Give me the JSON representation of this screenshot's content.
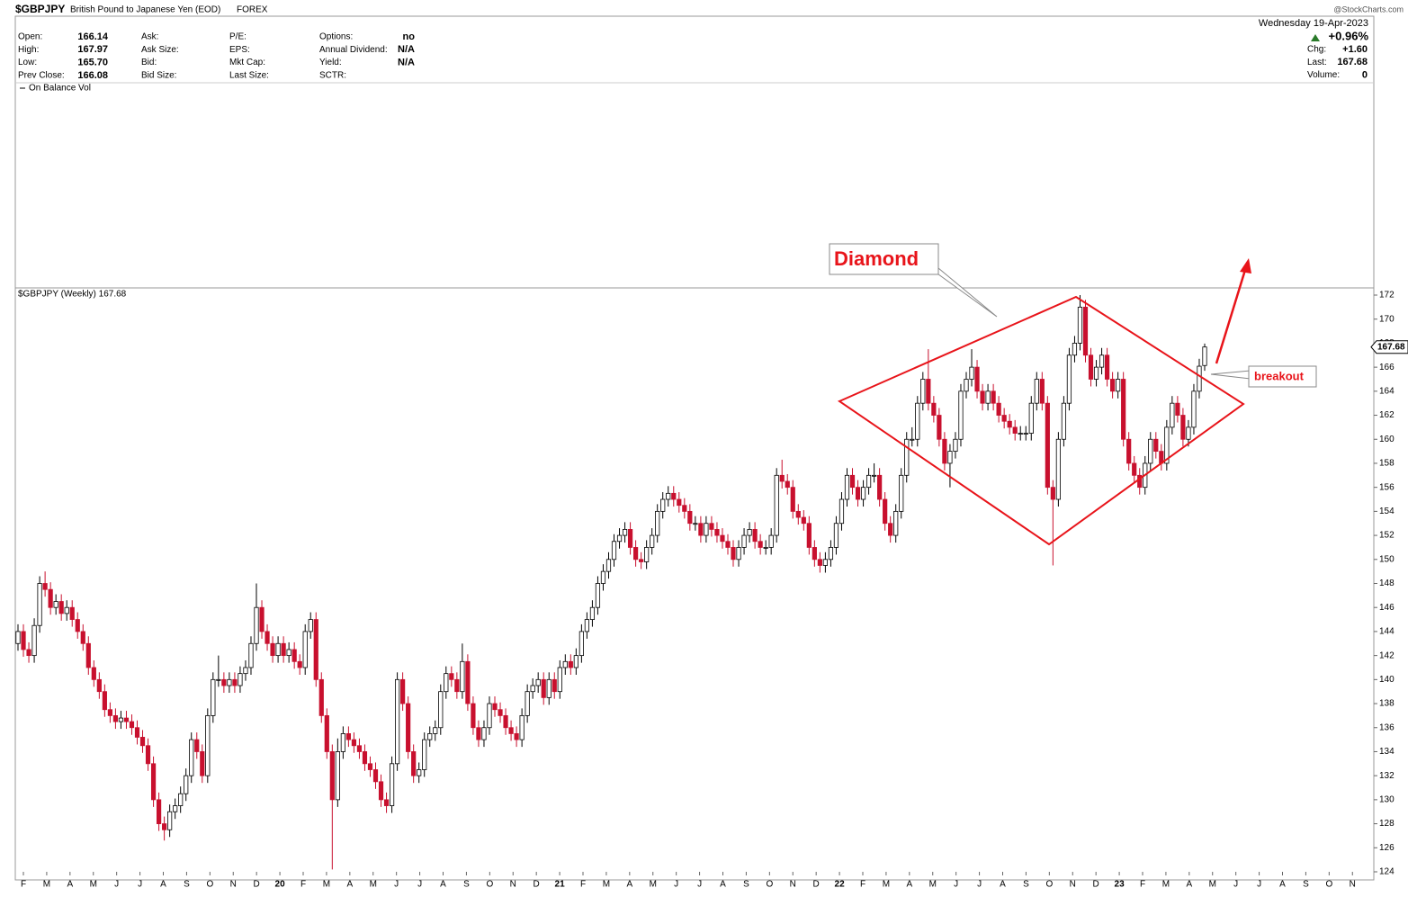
{
  "header": {
    "symbol": "$GBPJPY",
    "description": "British Pound to Japanese Yen (EOD)",
    "exchange": "FOREX",
    "credit": "@StockCharts.com",
    "date": "Wednesday  19-Apr-2023",
    "change_pct": "+0.96%",
    "columns": [
      [
        {
          "label": "Open:",
          "value": "166.14"
        },
        {
          "label": "High:",
          "value": "167.97"
        },
        {
          "label": "Low:",
          "value": "165.70"
        },
        {
          "label": "Prev Close:",
          "value": "166.08"
        }
      ],
      [
        {
          "label": "Ask:"
        },
        {
          "label": "Ask Size:"
        },
        {
          "label": "Bid:"
        },
        {
          "label": "Bid Size:"
        }
      ],
      [
        {
          "label": "P/E:"
        },
        {
          "label": "EPS:"
        },
        {
          "label": "Mkt Cap:"
        },
        {
          "label": "Last Size:"
        }
      ],
      [
        {
          "label": "Options:",
          "value": "no"
        },
        {
          "label": "Annual Dividend:",
          "value": "N/A"
        },
        {
          "label": "Yield:",
          "value": "N/A"
        },
        {
          "label": "SCTR:"
        }
      ]
    ],
    "right": [
      {
        "label": "Chg:",
        "value": "+1.60"
      },
      {
        "label": "Last:",
        "value": "167.68"
      },
      {
        "label": "Volume:",
        "value": "0"
      }
    ],
    "indicator": "On Balance Vol",
    "legend": "$GBPJPY (Weekly) 167.68"
  },
  "chart_data": {
    "type": "candlestick",
    "up_color": "#ffffff",
    "down_color": "#c8102e",
    "annotations": [
      "Diamond",
      "breakout"
    ],
    "ylim": [
      124,
      172
    ],
    "yticks": [
      124,
      126,
      128,
      130,
      132,
      134,
      136,
      138,
      140,
      142,
      144,
      146,
      148,
      150,
      152,
      154,
      156,
      158,
      160,
      162,
      164,
      166,
      168,
      170,
      172
    ],
    "x_labels": [
      "F",
      "M",
      "A",
      "M",
      "J",
      "J",
      "A",
      "S",
      "O",
      "N",
      "D",
      "20",
      "F",
      "M",
      "A",
      "M",
      "J",
      "J",
      "A",
      "S",
      "O",
      "N",
      "D",
      "21",
      "F",
      "M",
      "A",
      "M",
      "J",
      "J",
      "A",
      "S",
      "O",
      "N",
      "D",
      "22",
      "F",
      "M",
      "A",
      "M",
      "J",
      "J",
      "A",
      "S",
      "O",
      "N",
      "D",
      "23",
      "F",
      "M",
      "A",
      "M",
      "J",
      "J",
      "A",
      "S",
      "O",
      "N"
    ],
    "open": [
      143,
      144,
      142.5,
      142,
      144.5,
      148,
      147.5,
      146,
      146.5,
      145.5,
      146,
      145,
      144,
      143,
      141,
      140,
      139,
      137.5,
      137,
      136.5,
      136.8,
      136.5,
      136,
      135.2,
      134.5,
      133,
      130,
      128,
      127.5,
      129,
      129.5,
      130.5,
      132,
      135,
      134,
      132,
      137,
      140,
      140,
      139.5,
      140,
      139.5,
      140.5,
      141,
      143,
      146,
      144,
      143,
      142,
      143,
      142,
      142.5,
      141.5,
      141,
      144,
      145,
      140,
      137,
      134,
      130,
      134,
      135.5,
      135,
      134.5,
      134,
      133,
      132.5,
      131.5,
      130,
      129.5,
      133,
      140,
      138,
      134,
      132,
      132.5,
      135,
      135.5,
      136,
      139,
      140.5,
      140,
      139,
      141.5,
      138,
      136,
      135,
      136,
      138,
      137.5,
      137,
      136,
      135.5,
      135,
      137,
      139,
      139.5,
      140,
      138.5,
      140,
      139,
      141,
      141.5,
      141,
      142,
      144,
      145,
      146,
      148,
      149,
      150,
      151.5,
      152,
      152.5,
      151,
      150,
      149.8,
      151,
      152,
      154,
      155,
      155.5,
      155,
      154.5,
      154,
      153,
      153,
      152,
      153,
      152.5,
      152,
      151.5,
      151,
      150,
      151,
      152,
      152.5,
      151.5,
      151,
      151,
      152,
      157,
      156.5,
      156,
      154,
      153.5,
      153,
      151,
      150,
      149.5,
      150,
      151,
      153,
      155,
      157,
      156,
      155,
      156,
      157,
      157,
      155,
      153,
      152,
      154,
      157,
      160,
      160,
      163,
      165,
      163,
      162,
      160,
      158,
      159,
      160,
      164,
      165,
      166,
      164,
      163,
      164,
      163,
      162,
      161.5,
      161,
      160.5,
      160.5,
      160.5,
      163,
      165,
      163,
      156,
      155,
      160,
      163,
      167,
      168,
      171,
      167,
      165,
      166,
      167,
      165,
      164,
      165,
      160,
      158,
      157,
      156,
      158,
      160,
      159,
      158,
      161,
      163,
      162,
      160,
      161,
      164,
      166.14
    ],
    "high": [
      144.6,
      144.6,
      143.1,
      145.1,
      148.6,
      149,
      148.1,
      147.1,
      147.1,
      146.6,
      146.6,
      145.6,
      144.6,
      143.6,
      141.6,
      140.6,
      139.6,
      138.1,
      137.6,
      137.4,
      137.4,
      137.1,
      136.6,
      135.8,
      135.1,
      133.6,
      130.6,
      128.6,
      129.6,
      130.1,
      131.1,
      132.6,
      135.6,
      135.6,
      134.6,
      137.6,
      140.6,
      142,
      140.6,
      140.6,
      140.6,
      141.1,
      141.6,
      143.6,
      148,
      146.6,
      144.6,
      143.6,
      143.6,
      143.6,
      143.1,
      143.1,
      142.1,
      144.6,
      145.6,
      145.6,
      140.6,
      137.6,
      134.6,
      135.1,
      136.1,
      136.1,
      135.6,
      135.1,
      134.6,
      133.6,
      133.1,
      132.1,
      130.6,
      133.6,
      140.6,
      140.6,
      138.6,
      134.6,
      133.1,
      135.6,
      136.1,
      136.6,
      139.6,
      141.1,
      141.1,
      140.6,
      143,
      142.1,
      138.6,
      136.6,
      136.6,
      138.6,
      138.6,
      138.1,
      137.6,
      136.6,
      136.1,
      137.6,
      139.6,
      140.1,
      140.6,
      140.6,
      140.6,
      140.6,
      141.6,
      142.1,
      142.1,
      142.6,
      144.6,
      145.6,
      146.6,
      148.6,
      149.6,
      150.6,
      152.1,
      152.6,
      153.1,
      153.1,
      151.6,
      150.6,
      151.6,
      152.6,
      154.6,
      155.6,
      156.1,
      156.1,
      155.6,
      155.1,
      154.6,
      153.6,
      153.6,
      153.6,
      153.6,
      153.1,
      152.6,
      152.1,
      151.6,
      151.6,
      152.6,
      153.1,
      153.1,
      152.1,
      151.6,
      152.6,
      157.6,
      158.3,
      157.1,
      156.6,
      154.6,
      154.1,
      153.6,
      151.6,
      150.6,
      150.6,
      151.6,
      153.6,
      155.6,
      157.6,
      157.6,
      156.6,
      156.6,
      157.6,
      158,
      157.6,
      155.6,
      153.6,
      154.6,
      157.6,
      160.6,
      161,
      163.6,
      165.6,
      167.5,
      163.6,
      162.6,
      160.6,
      159.6,
      160.6,
      164.6,
      165.6,
      167.5,
      166.6,
      164.6,
      164.6,
      164.6,
      163.6,
      162.6,
      162.1,
      161.6,
      161.1,
      161.1,
      163.6,
      165.6,
      165.6,
      163.6,
      156.6,
      160.6,
      163.6,
      167.6,
      168.6,
      172,
      171.6,
      167.6,
      166.6,
      167.6,
      167.6,
      165.6,
      165.6,
      165.6,
      160.6,
      158.6,
      157.6,
      158.6,
      160.6,
      160.6,
      159.6,
      161.6,
      163.6,
      163.6,
      162.6,
      161.6,
      164.6,
      166.7,
      167.97
    ],
    "low": [
      142.4,
      141.9,
      141.4,
      141.4,
      143.9,
      146.9,
      145.4,
      145.4,
      144.9,
      144.9,
      144.4,
      143.4,
      142.4,
      140.4,
      139.4,
      138.4,
      136.9,
      136.4,
      135.9,
      135.9,
      135.9,
      135.4,
      134.6,
      133.9,
      132.4,
      129.4,
      127.4,
      126.6,
      126.9,
      128.4,
      128.9,
      129.9,
      131.4,
      133.4,
      131.4,
      131.4,
      136.4,
      139.4,
      138.9,
      138.9,
      138.9,
      138.9,
      139.9,
      140.4,
      142.4,
      143.4,
      142.4,
      141.4,
      141.4,
      141.4,
      141.4,
      140.9,
      140.4,
      140.4,
      143.4,
      139.4,
      136.4,
      133.4,
      124.2,
      129.4,
      133.4,
      134.4,
      133.9,
      133.4,
      132.4,
      131.9,
      130.9,
      129.4,
      128.9,
      128.9,
      132.4,
      137.4,
      133.4,
      131.4,
      131.4,
      131.9,
      134.4,
      134.9,
      135.4,
      138.4,
      139.4,
      138.4,
      138.4,
      137.4,
      135.4,
      134.4,
      134.4,
      135.4,
      136.9,
      136.4,
      135.4,
      134.9,
      134.4,
      134.4,
      136.4,
      138.4,
      138.9,
      137.9,
      137.9,
      138.4,
      138.4,
      140.4,
      140.4,
      140.4,
      141.4,
      143.4,
      144.4,
      145.4,
      147.4,
      148.4,
      149.4,
      150.9,
      151.4,
      150.4,
      149.4,
      149.2,
      149.2,
      150.4,
      151.4,
      153.4,
      154.4,
      154.4,
      153.9,
      153.4,
      152.4,
      152.4,
      151.4,
      151.4,
      151.9,
      151.4,
      150.9,
      150.4,
      149.4,
      149.4,
      150.4,
      151.4,
      150.9,
      150.4,
      150.4,
      150.4,
      151.4,
      155.9,
      155.4,
      153.4,
      152.9,
      152.4,
      150.4,
      149.4,
      148.9,
      148.9,
      149.4,
      150.4,
      152.4,
      154.4,
      155.4,
      154.4,
      154.4,
      155.4,
      156.4,
      154.4,
      152.4,
      151.4,
      151.4,
      153.4,
      156.4,
      159.4,
      159.4,
      162.4,
      162.4,
      161.4,
      159.4,
      157.4,
      156,
      158.4,
      159.4,
      163.4,
      164.4,
      163.4,
      162.4,
      162.4,
      162.4,
      161.4,
      160.9,
      160.4,
      159.9,
      159.9,
      159.9,
      159.9,
      162.4,
      162.4,
      155.4,
      149.5,
      154.4,
      159.4,
      162.4,
      166.4,
      167.4,
      166.4,
      164.4,
      164.4,
      165.4,
      164.4,
      163.4,
      163.4,
      159.4,
      157.4,
      156.4,
      155.4,
      155.4,
      157.4,
      158.4,
      157.4,
      157.4,
      160.4,
      161.4,
      159.4,
      159.4,
      160.4,
      163.4,
      165.7
    ],
    "close": [
      144,
      142.5,
      142,
      144.5,
      148,
      147.5,
      146,
      146.5,
      145.5,
      146,
      145,
      144,
      143,
      141,
      140,
      139,
      137.5,
      137,
      136.5,
      136.8,
      136.5,
      136,
      135.2,
      134.5,
      133,
      130,
      128,
      127.5,
      129,
      129.5,
      130.5,
      132,
      135,
      134,
      132,
      137,
      140,
      140,
      139.5,
      140,
      139.5,
      140.5,
      141,
      143,
      146,
      144,
      143,
      142,
      143,
      142,
      142.5,
      141.5,
      141,
      144,
      145,
      140,
      137,
      134,
      130,
      134,
      135.5,
      135,
      134.5,
      134,
      133,
      132.5,
      131.5,
      130,
      129.5,
      133,
      140,
      138,
      134,
      132,
      132.5,
      135,
      135.5,
      136,
      139,
      140.5,
      140,
      139,
      141.5,
      138,
      136,
      135,
      136,
      138,
      137.5,
      137,
      136,
      135.5,
      135,
      137,
      139,
      139.5,
      140,
      138.5,
      140,
      139,
      141,
      141.5,
      141,
      142,
      144,
      145,
      146,
      148,
      149,
      150,
      151.5,
      152,
      152.5,
      151,
      150,
      149.8,
      151,
      152,
      154,
      155,
      155.5,
      155,
      154.5,
      154,
      153,
      153,
      152,
      153,
      152.5,
      152,
      151.5,
      151,
      150,
      151,
      152,
      152.5,
      151.5,
      151,
      151,
      152,
      157,
      156.5,
      156,
      154,
      153.5,
      153,
      151,
      150,
      149.5,
      150,
      151,
      153,
      155,
      157,
      156,
      155,
      156,
      157,
      157,
      155,
      153,
      152,
      154,
      157,
      160,
      160,
      163,
      165,
      163,
      162,
      160,
      158,
      159,
      160,
      164,
      165,
      166,
      164,
      163,
      164,
      163,
      162,
      161.5,
      161,
      160.5,
      160.5,
      160.5,
      163,
      165,
      163,
      156,
      155,
      160,
      163,
      167,
      168,
      171,
      167,
      165,
      166,
      167,
      165,
      164,
      165,
      160,
      158,
      157,
      156,
      158,
      160,
      159,
      158,
      161,
      163,
      162,
      160,
      161,
      164,
      166.08,
      167.68
    ]
  }
}
